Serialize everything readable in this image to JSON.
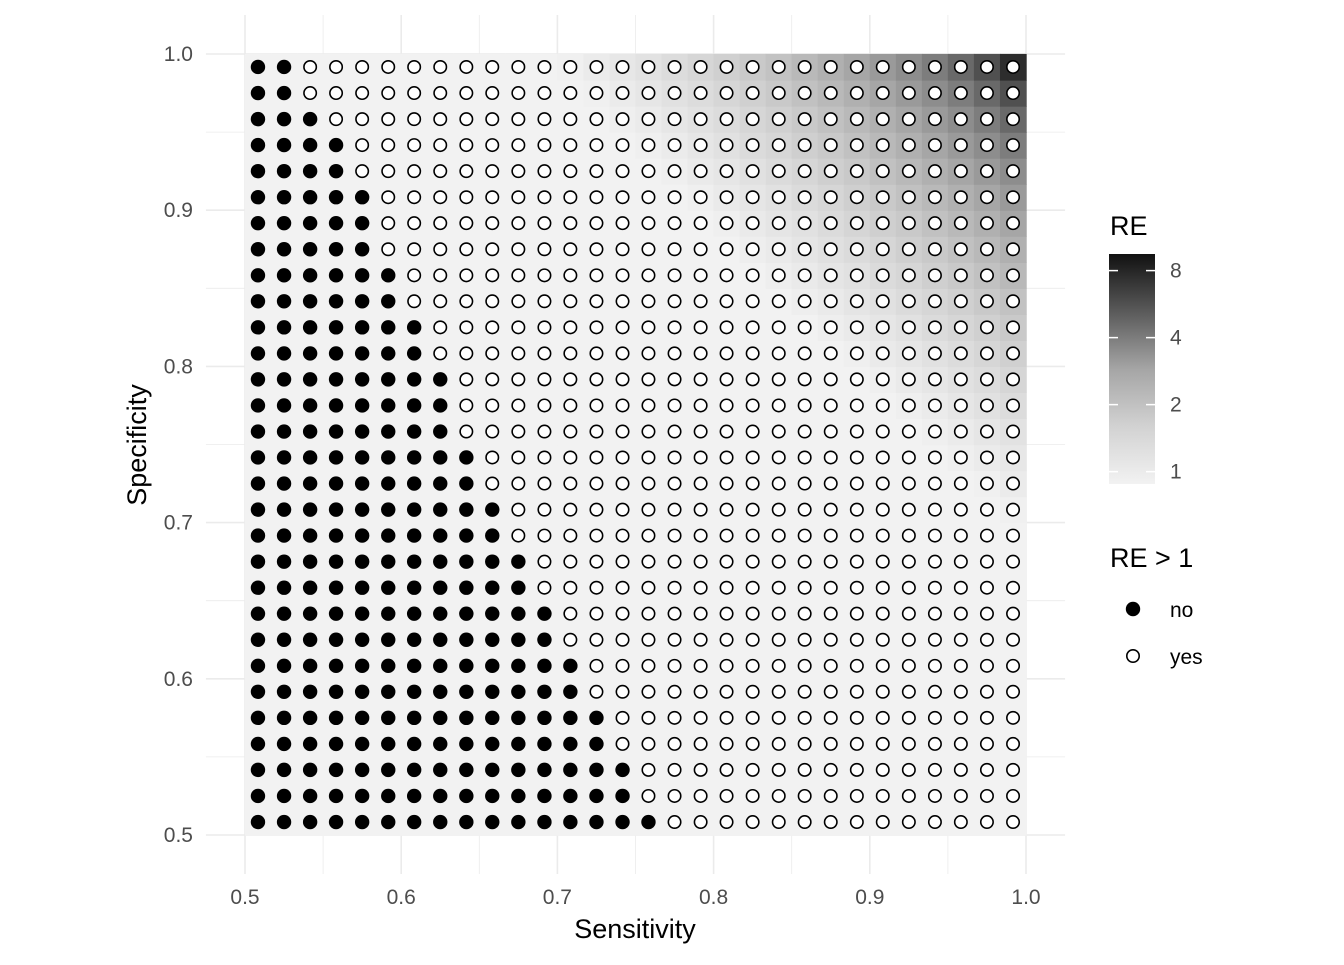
{
  "chart_data": {
    "type": "heatmap",
    "xlabel": "Sensitivity",
    "ylabel": "Specificity",
    "xlim": [
      0.5,
      1.0
    ],
    "ylim": [
      0.5,
      1.0
    ],
    "x_ticks": [
      "0.5",
      "0.6",
      "0.7",
      "0.8",
      "0.9",
      "1.0"
    ],
    "y_ticks": [
      "0.5",
      "0.6",
      "0.7",
      "0.8",
      "0.9",
      "1.0"
    ],
    "x_tick_values": [
      0.5,
      0.6,
      0.7,
      0.8,
      0.9,
      1.0
    ],
    "y_tick_values": [
      0.5,
      0.6,
      0.7,
      0.8,
      0.9,
      1.0
    ],
    "grid_x": [
      0.5,
      0.6333,
      0.6667,
      0.8,
      0.9,
      1.0
    ],
    "grid_y_start": 0.5166,
    "grid_step": 0.0167,
    "grid_n": 30,
    "points": {
      "rows_bottom_to_top_spec": [
        0.5083,
        0.525,
        0.5417,
        0.5583,
        0.575,
        0.5917,
        0.6083,
        0.625,
        0.6417,
        0.6583,
        0.675,
        0.6917,
        0.7083,
        0.725,
        0.7417,
        0.7583,
        0.775,
        0.7917,
        0.8083,
        0.825,
        0.8417,
        0.8583,
        0.875,
        0.8917,
        0.9083,
        0.925,
        0.9417,
        0.9583,
        0.975,
        0.9917
      ],
      "cols_left_to_right_sens": [
        0.5083,
        0.525,
        0.5417,
        0.5583,
        0.575,
        0.5917,
        0.6083,
        0.625,
        0.6417,
        0.6583,
        0.675,
        0.6917,
        0.7083,
        0.725,
        0.7417,
        0.7583,
        0.775,
        0.7917,
        0.8083,
        0.825,
        0.8417,
        0.8583,
        0.875,
        0.8917,
        0.9083,
        0.925,
        0.9417,
        0.9583,
        0.975,
        0.9917
      ],
      "filled_count_per_row_bottom_to_top": [
        16,
        15,
        15,
        14,
        14,
        13,
        13,
        12,
        12,
        11,
        11,
        10,
        10,
        9,
        9,
        8,
        8,
        8,
        7,
        7,
        6,
        6,
        5,
        5,
        5,
        4,
        4,
        3,
        2,
        2
      ]
    },
    "legend_gradient": {
      "title": "RE",
      "tick_labels": [
        "8",
        "4",
        "2",
        "1"
      ],
      "tick_values": [
        8,
        4,
        2,
        1
      ],
      "scale": "log",
      "range": [
        0.88,
        9.5
      ],
      "low_color": "#f2f2f2",
      "high_color": "#111111"
    },
    "legend_shape": {
      "title": "RE > 1",
      "items": [
        {
          "label": "no",
          "shape": "filled-circle"
        },
        {
          "label": "yes",
          "shape": "open-circle"
        }
      ],
      "placement": "right"
    },
    "grid": true
  }
}
